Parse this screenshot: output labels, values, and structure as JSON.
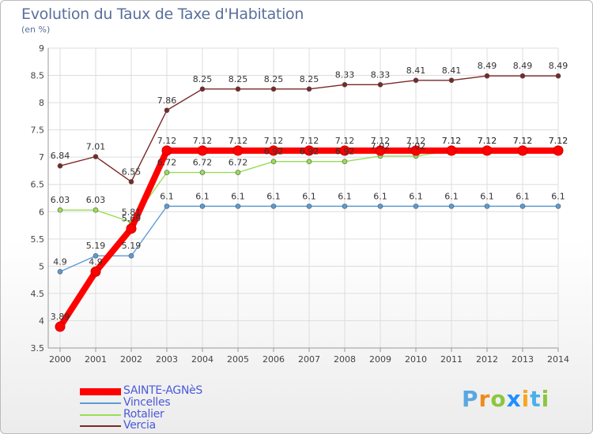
{
  "title": "Evolution du Taux de Taxe d'Habitation",
  "subtitle": "(en %)",
  "logo": {
    "text": "Proxiti",
    "letter_colors": [
      "#5aa7e0",
      "#f08a1c",
      "#8cc63f",
      "#1e90ff",
      "#f5a623",
      "#4ab0e8",
      "#8cc63f"
    ]
  },
  "chart_data": {
    "type": "line",
    "title": "Evolution du Taux de Taxe d'Habitation",
    "subtitle": "(en %)",
    "x": [
      "2000",
      "2001",
      "2002",
      "2003",
      "2004",
      "2005",
      "2006",
      "2007",
      "2008",
      "2009",
      "2010",
      "2011",
      "2012",
      "2013",
      "2014"
    ],
    "ylim": [
      3.5,
      9
    ],
    "yticks": [
      "3.5",
      "4",
      "4.5",
      "5",
      "5.5",
      "6",
      "6.5",
      "7",
      "7.5",
      "8",
      "8.5",
      "9"
    ],
    "grid": true,
    "legend_position": "bottom-left",
    "series": [
      {
        "name": "SAINTE-AGNèS",
        "color": "#ff0000",
        "values": [
          3.89,
          4.9,
          5.69,
          7.12,
          7.12,
          7.12,
          7.12,
          7.12,
          7.12,
          7.12,
          7.12,
          7.12,
          7.12,
          7.12,
          7.12
        ],
        "labels": [
          "3.89",
          "4.9",
          "5.69",
          "7.12",
          "7.12",
          "7.12",
          "7.12",
          "7.12",
          "7.12",
          "7.12",
          "7.12",
          "7.12",
          "7.12",
          "7.12",
          "7.12"
        ]
      },
      {
        "name": "Vincelles",
        "color": "#5b9bd5",
        "values": [
          4.9,
          5.19,
          5.19,
          6.1,
          6.1,
          6.1,
          6.1,
          6.1,
          6.1,
          6.1,
          6.1,
          6.1,
          6.1,
          6.1,
          6.1
        ],
        "labels": [
          "4.9",
          "5.19",
          "5.19",
          "6.1",
          "6.1",
          "6.1",
          "6.1",
          "6.1",
          "6.1",
          "6.1",
          "6.1",
          "6.1",
          "6.1",
          "6.1",
          "6.1"
        ]
      },
      {
        "name": "Rotalier",
        "color": "#99dd55",
        "values": [
          6.03,
          6.03,
          5.81,
          6.72,
          6.72,
          6.72,
          6.92,
          6.92,
          6.92,
          7.02,
          7.02,
          7.12,
          7.12,
          7.12,
          7.12
        ],
        "labels": [
          "6.03",
          "6.03",
          "5.81",
          "6.72",
          "6.72",
          "6.72",
          "6.92",
          "6.92",
          "6.92",
          "7.02",
          "7.02",
          "7.12",
          "7.12",
          "7.12",
          "7.12"
        ]
      },
      {
        "name": "Vercia",
        "color": "#7a2828",
        "values": [
          6.84,
          7.01,
          6.55,
          7.86,
          8.25,
          8.25,
          8.25,
          8.25,
          8.33,
          8.33,
          8.41,
          8.41,
          8.49,
          8.49,
          8.49
        ],
        "labels": [
          "6.84",
          "7.01",
          "6.55",
          "7.86",
          "8.25",
          "8.25",
          "8.25",
          "8.25",
          "8.33",
          "8.33",
          "8.41",
          "8.41",
          "8.49",
          "8.49",
          "8.49"
        ]
      }
    ]
  }
}
